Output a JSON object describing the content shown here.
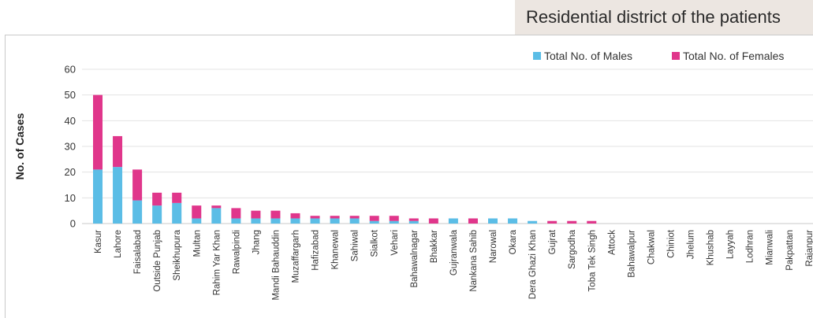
{
  "title": "Residential district of the patients",
  "colors": {
    "males": "#5bbde6",
    "females": "#e0368b",
    "grid": "#e3e3e3"
  },
  "chart_data": {
    "type": "bar",
    "stacked": true,
    "title": "Residential district of the patients",
    "xlabel": "",
    "ylabel": "No. of Cases",
    "ylim": [
      0,
      60
    ],
    "yticks": [
      0,
      10,
      20,
      30,
      40,
      50,
      60
    ],
    "grid": true,
    "legend_position": "top-right",
    "categories": [
      "Kasur",
      "Lahore",
      "Faisalabad",
      "Outside Punjab",
      "Sheikhupura",
      "Multan",
      "Rahim Yar Khan",
      "Rawalpindi",
      "Jhang",
      "Mandi Bahauddin",
      "Muzaffargarh",
      "Hafizabad",
      "Khanewal",
      "Sahiwal",
      "Sialkot",
      "Vehari",
      "Bahawalnagar",
      "Bhakkar",
      "Gujranwala",
      "Nankana Sahib",
      "Narowal",
      "Okara",
      "Dera Ghazi Khan",
      "Gujrat",
      "Sargodha",
      "Toba Tek Singh",
      "Attock",
      "Bahawalpur",
      "Chakwal",
      "Chiniot",
      "Jhelum",
      "Khushab",
      "Layyah",
      "Lodhran",
      "Mianwali",
      "Pakpattan",
      "Rajanpur"
    ],
    "series": [
      {
        "name": "Total No. of Males",
        "values": [
          21,
          22,
          9,
          7,
          8,
          2,
          6,
          2,
          2,
          2,
          2,
          2,
          2,
          2,
          1,
          1,
          1,
          0,
          2,
          0,
          2,
          2,
          1,
          0,
          0,
          0,
          0,
          0,
          0,
          0,
          0,
          0,
          0,
          0,
          0,
          0,
          0
        ]
      },
      {
        "name": "Total No. of Females",
        "values": [
          29,
          12,
          12,
          5,
          4,
          5,
          1,
          4,
          3,
          3,
          2,
          1,
          1,
          1,
          2,
          2,
          1,
          2,
          0,
          2,
          0,
          0,
          0,
          1,
          1,
          1,
          0,
          0,
          0,
          0,
          0,
          0,
          0,
          0,
          0,
          0,
          0
        ]
      }
    ]
  }
}
